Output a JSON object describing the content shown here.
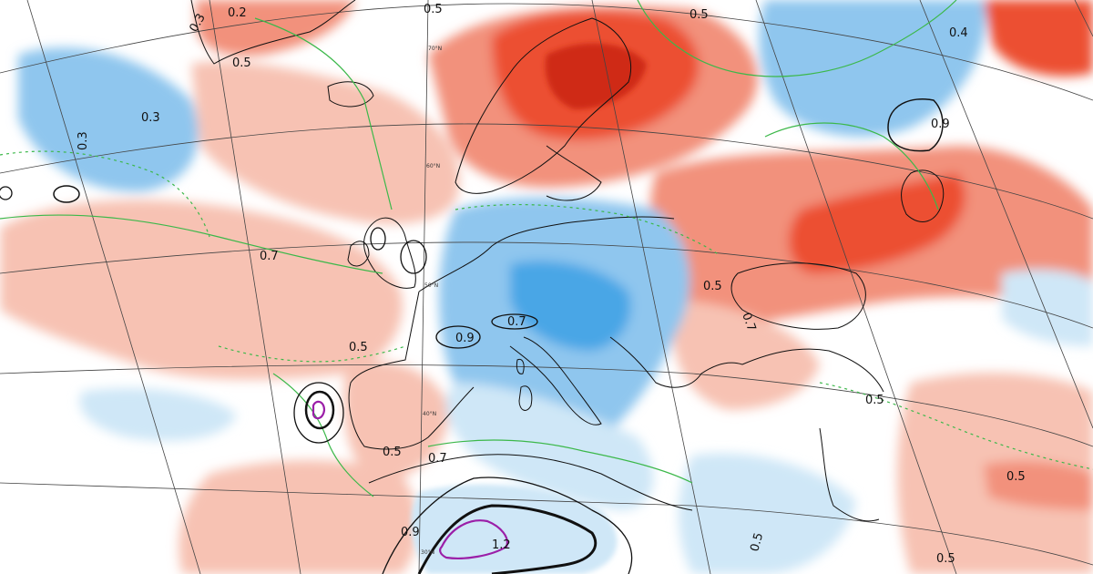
{
  "map": {
    "colors": {
      "warm_light": "#f7c2b3",
      "warm_mid": "#f2917c",
      "warm_strong": "#ec4f33",
      "warm_deep": "#cf2a15",
      "cold_light": "#cfe7f7",
      "cold_mid": "#8fc6ee",
      "cold_strong": "#4aa6e6",
      "contour_green": "#3cb84a",
      "contour_black": "#111111",
      "contour_purple": "#9b1fa8",
      "graticule": "#444444",
      "coast": "#111111"
    },
    "contour_labels": [
      {
        "id": "greenland-0-2",
        "text": "0.2"
      },
      {
        "id": "greenland-0-5",
        "text": "0.5"
      },
      {
        "id": "greenland-0-3",
        "text": "0.3"
      },
      {
        "id": "arctic-0-5",
        "text": "0.5"
      },
      {
        "id": "atlantic-0-3a",
        "text": "0.3"
      },
      {
        "id": "atlantic-0-3b",
        "text": "0.3"
      },
      {
        "id": "scandinavia-0-5",
        "text": "0.5"
      },
      {
        "id": "russia-0-4",
        "text": "0.4"
      },
      {
        "id": "russia-0-9",
        "text": "0.9"
      },
      {
        "id": "atlantic-0-7",
        "text": "0.7"
      },
      {
        "id": "biscay-0-5",
        "text": "0.5"
      },
      {
        "id": "alps-0-9",
        "text": "0.9"
      },
      {
        "id": "alps-0-7",
        "text": "0.7"
      },
      {
        "id": "balkans-0-5",
        "text": "0.5"
      },
      {
        "id": "blacksea-0-7",
        "text": "0.7"
      },
      {
        "id": "iberia-0-5",
        "text": "0.5"
      },
      {
        "id": "gibraltar-0-7",
        "text": "0.7"
      },
      {
        "id": "morocco-0-9",
        "text": "0.9"
      },
      {
        "id": "sahara-1-2",
        "text": "1.2"
      },
      {
        "id": "libya-0-5",
        "text": "0.5"
      },
      {
        "id": "turkey-0-5",
        "text": "0.5"
      },
      {
        "id": "egypt-0-5",
        "text": "0.5"
      },
      {
        "id": "mideast-0-5",
        "text": "0.5"
      }
    ],
    "latitude_labels": [
      {
        "id": "lat-70",
        "text": "70°N"
      },
      {
        "id": "lat-60",
        "text": "60°N"
      },
      {
        "id": "lat-50",
        "text": "50°N"
      },
      {
        "id": "lat-40",
        "text": "40°N"
      },
      {
        "id": "lat-30",
        "text": "30°N"
      }
    ]
  }
}
